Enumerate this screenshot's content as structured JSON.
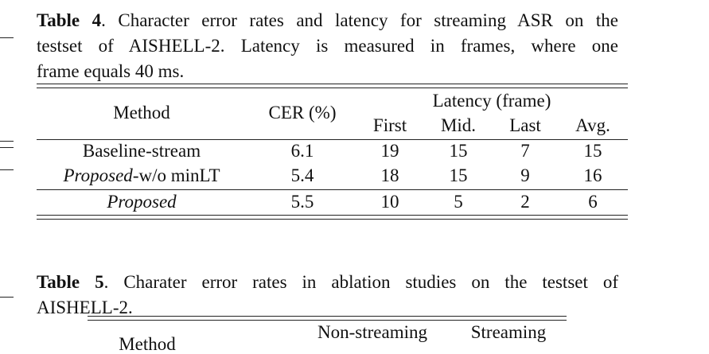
{
  "table4": {
    "caption": {
      "label": "Table 4",
      "lines": [
        ". Character error rates and latency for streaming ASR on the",
        "testset of AISHELL-2.  Latency is measured in frames, where one",
        "frame equals 40 ms."
      ]
    },
    "header": {
      "method": "Method",
      "cer": "CER (%)",
      "latency": "Latency (frame)",
      "sub": [
        "First",
        "Mid.",
        "Last",
        "Avg."
      ]
    },
    "rows": [
      {
        "method": [
          "Baseline-stream"
        ],
        "cells": [
          "6.1",
          "19",
          "15",
          "7",
          "15"
        ]
      },
      {
        "method": [
          "Proposed",
          "-w/o minLT"
        ],
        "cells": [
          "5.4",
          "18",
          "15",
          "9",
          "16"
        ]
      },
      {
        "method": [
          "Proposed"
        ],
        "cells": [
          "5.5",
          "10",
          "5",
          "2",
          "6"
        ]
      }
    ]
  },
  "table5": {
    "caption": {
      "label": "Table 5",
      "lines": [
        ".  Charater error rates in ablation studies on the testset of",
        "AISHELL-2."
      ]
    },
    "header": {
      "method": "Method",
      "cols": [
        "Non-streaming",
        "Streaming"
      ]
    }
  }
}
